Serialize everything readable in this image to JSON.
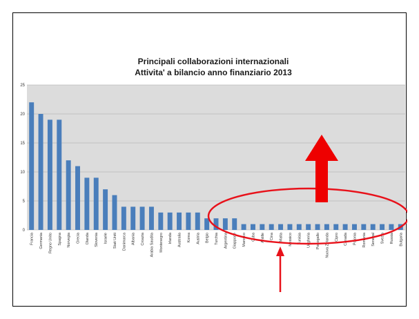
{
  "chart_data": {
    "type": "bar",
    "title": [
      "Principali collaborazioni internazionali",
      "Attivita' a bilancio anno finanziario 2013"
    ],
    "xlabel": "",
    "ylabel": "",
    "ylim": [
      0,
      25
    ],
    "yticks": [
      0,
      5,
      10,
      15,
      20,
      25
    ],
    "grid": true,
    "legend": "none",
    "bar_color": "#4a7ebb",
    "categories": [
      "Francia",
      "Germania",
      "Regno Unito",
      "Spagna",
      "Norvegia",
      "Grecia",
      "Olanda",
      "Slovenia",
      "Israele",
      "Stati Uniti",
      "Danimarca",
      "Albania",
      "Croazia",
      "Arabia Saudita",
      "Montenegro",
      "Irlanda",
      "Australia",
      "Korea",
      "Austria",
      "Belgio",
      "Turchia",
      "Argentina",
      "Giappone",
      "Marocco",
      "Cuba",
      "Antille",
      "Cina",
      "Malta",
      "Messico",
      "Tunisia",
      "Ungheria",
      "Portogallo",
      "Nuova Zelanda",
      "Cipro",
      "Canada",
      "Polonia",
      "Romania",
      "Senegal",
      "Svezia",
      "Russia",
      "Bulgaria"
    ],
    "values": [
      22,
      20,
      19,
      19,
      12,
      11,
      9,
      9,
      7,
      6,
      4,
      4,
      4,
      4,
      3,
      3,
      3,
      3,
      3,
      2,
      2,
      2,
      2,
      1,
      1,
      1,
      1,
      1,
      1,
      1,
      1,
      1,
      1,
      1,
      1,
      1,
      1,
      1,
      1,
      1,
      1
    ]
  },
  "annotations": {
    "ellipse_color": "#e8111a",
    "big_arrow_color": "#ee0000",
    "small_arrow_color": "#e8111a"
  }
}
